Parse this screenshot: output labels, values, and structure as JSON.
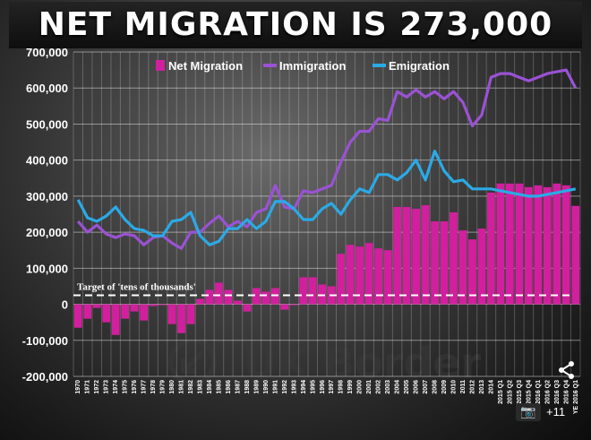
{
  "title": "NET MIGRATION IS 273,000",
  "watermark": "UK Border",
  "photo_count": "+11",
  "icons": [
    "camera-icon",
    "share-icon",
    "uk-border-arrow-icon"
  ],
  "colors": {
    "net": "#d21f9e",
    "immigration": "#9a52d4",
    "emigration": "#2aaae6",
    "target": "#ffffff"
  },
  "chart_data": {
    "type": "bar",
    "ylim": [
      -200000,
      700000
    ],
    "yticks": [
      "700,000",
      "600,000",
      "500,000",
      "400,000",
      "300,000",
      "200,000",
      "100,000",
      "0",
      "-100,000",
      "-200,000"
    ],
    "grid": true,
    "legend_position": "top-right",
    "categories": [
      "1970",
      "1971",
      "1972",
      "1973",
      "1974",
      "1975",
      "1976",
      "1977",
      "1978",
      "1979",
      "1980",
      "1981",
      "1982",
      "1983",
      "1984",
      "1985",
      "1986",
      "1987",
      "1988",
      "1989",
      "1990",
      "1991",
      "1992",
      "1993",
      "1994",
      "1995",
      "1996",
      "1997",
      "1998",
      "1999",
      "2000",
      "2001",
      "2002",
      "2003",
      "2004",
      "2005",
      "2006",
      "2007",
      "2008",
      "2009",
      "2010",
      "2011",
      "2012",
      "2013",
      "2014",
      "2015 Q1",
      "2015 Q2",
      "2015 Q3",
      "2015 Q4",
      "2016 Q1",
      "2016 Q2",
      "2016 Q3",
      "2016 Q4",
      "YE 2016 Q1"
    ],
    "tick_labels_shown": [
      "1970",
      "1971",
      "1972",
      "1973",
      "1974",
      "1975",
      "1976",
      "1977",
      "1978",
      "1979",
      "1980",
      "1981",
      "1982",
      "1983",
      "1984",
      "1985",
      "1986",
      "1987",
      "1988",
      "1989",
      "1990",
      "1991",
      "1992",
      "1993",
      "1994",
      "1995",
      "1996",
      "1997",
      "1998",
      "1999",
      "2000",
      "2001",
      "2002",
      "2003",
      "2004",
      "2005",
      "2006",
      "2007",
      "2008",
      "2009",
      "2010",
      "2011",
      "2012",
      "2013",
      "2014",
      "2015 Q1",
      "2015 Q2",
      "2015 Q3",
      "2015 Q4",
      "2016 Q1",
      "2016 Q2",
      "2016 Q3",
      "2016 Q4",
      "YE 2016 Q1"
    ],
    "series": [
      {
        "name": "Net Migration",
        "kind": "bar",
        "values": [
          -65000,
          -40000,
          -10000,
          -50000,
          -85000,
          -40000,
          -20000,
          -45000,
          -5000,
          0,
          -55000,
          -80000,
          -55000,
          15000,
          40000,
          60000,
          40000,
          10000,
          -20000,
          45000,
          35000,
          45000,
          -15000,
          0,
          75000,
          75000,
          55000,
          50000,
          140000,
          165000,
          160000,
          170000,
          155000,
          150000,
          270000,
          270000,
          265000,
          275000,
          230000,
          230000,
          255000,
          205000,
          180000,
          210000,
          310000,
          335000,
          335000,
          335000,
          325000,
          330000,
          325000,
          335000,
          330000,
          273000
        ]
      },
      {
        "name": "Immigration",
        "kind": "line",
        "values": [
          230000,
          200000,
          220000,
          195000,
          185000,
          195000,
          190000,
          165000,
          185000,
          190000,
          170000,
          155000,
          200000,
          200000,
          225000,
          245000,
          215000,
          230000,
          215000,
          255000,
          265000,
          330000,
          270000,
          265000,
          315000,
          310000,
          320000,
          330000,
          395000,
          450000,
          480000,
          480000,
          515000,
          510000,
          590000,
          575000,
          595000,
          575000,
          590000,
          570000,
          590000,
          560000,
          495000,
          525000,
          630000,
          640000,
          640000,
          630000,
          620000,
          630000,
          640000,
          645000,
          650000,
          600000
        ]
      },
      {
        "name": "Emigration",
        "kind": "line",
        "values": [
          290000,
          240000,
          230000,
          245000,
          270000,
          235000,
          210000,
          205000,
          190000,
          190000,
          230000,
          235000,
          255000,
          190000,
          165000,
          175000,
          210000,
          210000,
          235000,
          210000,
          230000,
          285000,
          285000,
          265000,
          235000,
          235000,
          265000,
          280000,
          250000,
          290000,
          320000,
          310000,
          360000,
          360000,
          345000,
          365000,
          400000,
          345000,
          425000,
          370000,
          340000,
          345000,
          320000,
          320000,
          320000,
          315000,
          310000,
          305000,
          300000,
          300000,
          305000,
          310000,
          315000,
          320000
        ]
      }
    ],
    "annotations": [
      {
        "text": "Target of 'tens of thousands'",
        "y": 25000,
        "style": "dashed"
      }
    ]
  }
}
